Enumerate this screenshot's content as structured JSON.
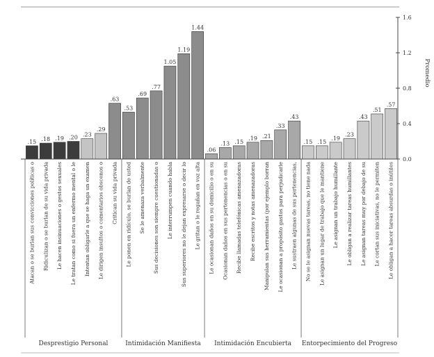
{
  "chart_data": {
    "type": "bar",
    "ylabel": "Promedio",
    "ylim": [
      0,
      1.6
    ],
    "yticks": [
      "0.0",
      "0.4",
      "0.8",
      "1.2",
      "1.6"
    ],
    "grid": false,
    "axis_side": "right",
    "groups": [
      {
        "name": "Desprestigio Personal",
        "color": "#4a4a4a",
        "items": [
          {
            "label": "Atacan o se burlan sus convicciones políticas o",
            "value": 0.15,
            "display": ".15",
            "color": "#3c3c3c"
          },
          {
            "label": "Ridiculizan o se burlan de su vida privada",
            "value": 0.18,
            "display": ".18",
            "color": "#3c3c3c"
          },
          {
            "label": "Le hacen insinuaciones o gestos sexuales",
            "value": 0.19,
            "display": ".19",
            "color": "#3c3c3c"
          },
          {
            "label": "Le tratan como si fuera un enfermo mental o le",
            "value": 0.2,
            "display": ".20",
            "color": "#3c3c3c"
          },
          {
            "label": "Intentan obligarle a que se haga un examen",
            "value": 0.23,
            "display": ".23",
            "color": "#c4c4c4"
          },
          {
            "label": "Le dirigen insultos o comentarios obscenos o",
            "value": 0.29,
            "display": ".29",
            "color": "#c4c4c4"
          },
          {
            "label": "Critican su vida privada",
            "value": 0.63,
            "display": ".63",
            "color": "#8c8c8c"
          }
        ]
      },
      {
        "name": "Intimidación Manifiesta",
        "color": "#8c8c8c",
        "items": [
          {
            "label": "Le ponen en ridículo, se burlan de usted",
            "value": 0.53,
            "display": ".53",
            "color": "#8c8c8c"
          },
          {
            "label": "Se le amenaza verbalmente",
            "value": 0.69,
            "display": ".69",
            "color": "#8c8c8c"
          },
          {
            "label": "Sus decisiones son siempre cuestionadas o",
            "value": 0.77,
            "display": ".77",
            "color": "#8c8c8c"
          },
          {
            "label": "Le interrumpen cuando habla",
            "value": 1.05,
            "display": "1.05",
            "color": "#8c8c8c"
          },
          {
            "label": "Sus superiores no le dejan expresarse o decir lo",
            "value": 1.19,
            "display": "1.19",
            "color": "#8c8c8c"
          },
          {
            "label": "Le gritan o le regañan en voz alta",
            "value": 1.44,
            "display": "1.44",
            "color": "#8c8c8c"
          }
        ]
      },
      {
        "name": "Intimidación Encubierta",
        "color": "#b0b0b0",
        "items": [
          {
            "label": "Le ocasionan daños en su domicilio o en su",
            "value": 0.06,
            "display": ".06",
            "color": "#a8a8a8"
          },
          {
            "label": "Ocasionan daños en sus pertenencias o en su",
            "value": 0.13,
            "display": ".13",
            "color": "#a8a8a8"
          },
          {
            "label": "Recibe llamadas telefónicas amenazadoras",
            "value": 0.15,
            "display": ".15",
            "color": "#a8a8a8"
          },
          {
            "label": "Recibe escritos y notas amenazadoras",
            "value": 0.19,
            "display": ".19",
            "color": "#a8a8a8"
          },
          {
            "label": "Manipulan sus herramientas (por ejemplo borran",
            "value": 0.21,
            "display": ".21",
            "color": "#a8a8a8"
          },
          {
            "label": "Le ocasionan a propósito gastos para perjudicarle",
            "value": 0.33,
            "display": ".33",
            "color": "#a8a8a8"
          },
          {
            "label": "Le sustraen algunas de sus pertenencias,",
            "value": 0.43,
            "display": ".43",
            "color": "#a8a8a8"
          }
        ]
      },
      {
        "name": "Entorpecimiento del Progreso",
        "color": "#cacaca",
        "items": [
          {
            "label": "No se le asignan nuevas tareas, no tiene nada",
            "value": 0.15,
            "display": ".15",
            "color": "#cacaca"
          },
          {
            "label": "Le asignan un lugar de trabajo que le mantiene",
            "value": 0.15,
            "display": ".15",
            "color": "#cacaca"
          },
          {
            "label": "Le asignan un trabajo humillante",
            "value": 0.19,
            "display": ".19",
            "color": "#cacaca"
          },
          {
            "label": "Le obligan a realizar tareas humillantes",
            "value": 0.23,
            "display": ".23",
            "color": "#cacaca"
          },
          {
            "label": "Le asignan tareas muy por debajo de su",
            "value": 0.43,
            "display": ".43",
            "color": "#cacaca"
          },
          {
            "label": "Le cortan sus iniciativas, no le permiten",
            "value": 0.51,
            "display": ".51",
            "color": "#cacaca"
          },
          {
            "label": "Le obligan a hacer tareas absurdas o inútiles",
            "value": 0.57,
            "display": ".57",
            "color": "#cacaca"
          }
        ]
      }
    ]
  }
}
